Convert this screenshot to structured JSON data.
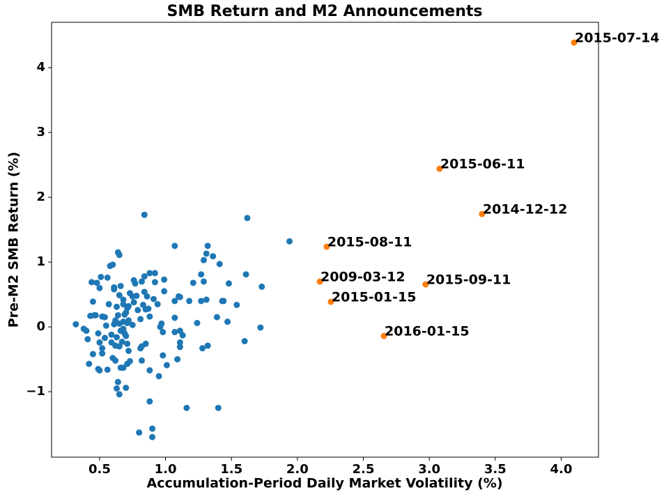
{
  "chart_data": {
    "type": "scatter",
    "title": "SMB Return and M2 Announcements",
    "x_label": "Accumulation-Period Daily Market Volatility (%)",
    "y_label": "Pre-M2 SMB Return (%)",
    "xlim": [
      0.136,
      4.283
    ],
    "ylim": [
      -2.01,
      4.7
    ],
    "xticks": [
      0.5,
      {
        "value": 1,
        "label": "1.0"
      },
      1.5,
      {
        "value": 2,
        "label": "2.0"
      },
      2.5,
      {
        "value": 3,
        "label": "3.0"
      },
      3.5,
      {
        "value": 4,
        "label": "4.0"
      }
    ],
    "yticks": [
      {
        "value": -1,
        "label": "−1"
      },
      0,
      1,
      2,
      3,
      4
    ],
    "grid": false,
    "series": [
      {
        "color": "#1f77b4",
        "x": [
          0.32,
          0.38,
          0.4,
          0.41,
          0.42,
          0.44,
          0.45,
          0.43,
          0.46,
          0.45,
          0.48,
          0.47,
          0.49,
          0.5,
          0.49,
          0.5,
          0.51,
          0.5,
          0.52,
          0.52,
          0.52,
          0.54,
          0.54,
          0.55,
          0.56,
          0.56,
          0.57,
          0.58,
          0.59,
          0.6,
          0.59,
          0.6,
          0.61,
          0.61,
          0.61,
          0.62,
          0.62,
          0.62,
          0.63,
          0.63,
          0.63,
          0.64,
          0.64,
          0.64,
          0.65,
          0.65,
          0.65,
          0.65,
          0.65,
          0.66,
          0.66,
          0.66,
          0.67,
          0.68,
          0.68,
          0.68,
          0.68,
          0.68,
          0.69,
          0.69,
          0.7,
          0.7,
          0.7,
          0.71,
          0.71,
          0.71,
          0.71,
          0.72,
          0.72,
          0.72,
          0.73,
          0.73,
          0.75,
          0.75,
          0.76,
          0.76,
          0.77,
          0.78,
          0.79,
          0.8,
          0.81,
          0.81,
          0.82,
          0.82,
          0.82,
          0.83,
          0.84,
          0.84,
          0.84,
          0.85,
          0.85,
          0.86,
          0.87,
          0.88,
          0.88,
          0.88,
          0.88,
          0.9,
          0.9,
          0.91,
          0.92,
          0.92,
          0.94,
          0.95,
          0.96,
          0.97,
          0.98,
          0.98,
          0.99,
          0.99,
          1.01,
          1.07,
          1.07,
          1.07,
          1.07,
          1.09,
          1.1,
          1.11,
          1.11,
          1.11,
          1.11,
          1.13,
          1.16,
          1.18,
          1.21,
          1.24,
          1.27,
          1.27,
          1.28,
          1.29,
          1.29,
          1.31,
          1.31,
          1.32,
          1.32,
          1.36,
          1.39,
          1.4,
          1.41,
          1.43,
          1.44,
          1.47,
          1.48,
          1.54,
          1.6,
          1.61,
          1.62,
          1.72,
          1.73,
          1.94
        ],
        "values": [
          0.04,
          -0.03,
          -0.06,
          -0.19,
          -0.57,
          0.69,
          0.39,
          0.17,
          0.18,
          -0.42,
          0.68,
          0.18,
          -0.1,
          -0.67,
          -0.65,
          -0.24,
          0.77,
          0.6,
          0.16,
          -0.33,
          -0.41,
          0.15,
          -0.17,
          0.02,
          0.76,
          -0.66,
          0.35,
          0.94,
          -0.12,
          0.96,
          -0.24,
          -0.48,
          0.04,
          0.58,
          0.61,
          -0.52,
          -0.29,
          0.1,
          -0.95,
          0.31,
          -0.16,
          1.15,
          0.18,
          -0.85,
          -1.04,
          0.05,
          1.11,
          -0.3,
          0.49,
          0.63,
          -0.63,
          -0.06,
          -0.23,
          0.35,
          -0.03,
          0.42,
          0.08,
          -0.63,
          0.19,
          -0.1,
          0.22,
          -0.94,
          -0.14,
          0.29,
          0.06,
          -0.26,
          -0.57,
          -0.37,
          0.1,
          0.32,
          -0.53,
          0.52,
          0.47,
          0.03,
          0.72,
          0.38,
          0.67,
          0.48,
          0.26,
          -1.63,
          -0.33,
          0.12,
          -0.3,
          0.7,
          -0.52,
          0.34,
          0.78,
          1.73,
          0.54,
          -0.26,
          0.27,
          0.47,
          0.28,
          -0.67,
          -1.15,
          0.16,
          0.83,
          -1.57,
          -1.7,
          0.43,
          0.69,
          0.83,
          0.35,
          -0.76,
          0.0,
          0.05,
          -0.08,
          -0.44,
          0.73,
          0.55,
          -0.59,
          1.25,
          0.4,
          -0.08,
          0.14,
          -0.5,
          0.47,
          -0.31,
          -0.24,
          -0.06,
          0.46,
          -0.13,
          -1.25,
          0.4,
          0.68,
          0.06,
          0.4,
          0.81,
          -0.33,
          1.03,
          0.7,
          1.13,
          0.42,
          -0.29,
          1.25,
          1.09,
          0.15,
          -1.25,
          0.97,
          0.4,
          0.4,
          0.08,
          0.67,
          0.34,
          -0.22,
          0.81,
          1.68,
          -0.01,
          0.62,
          1.32
        ]
      },
      {
        "color": "#ff7f0e",
        "x": [
          4.098,
          3.078,
          3.4,
          2.222,
          2.17,
          2.972,
          2.254,
          2.656
        ],
        "values": [
          4.387,
          2.44,
          1.742,
          1.237,
          0.699,
          0.656,
          0.387,
          -0.14
        ],
        "point_labels": [
          "2015-07-14",
          "2015-06-11",
          "2014-12-12",
          "2015-08-11",
          "2009-03-12",
          "2015-09-11",
          "2015-01-15",
          "2016-01-15"
        ]
      }
    ]
  }
}
